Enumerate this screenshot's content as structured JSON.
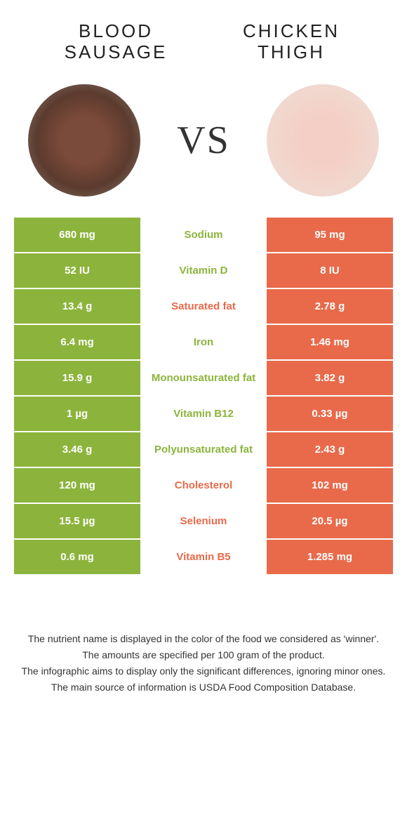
{
  "colors": {
    "left_bg": "#8cb43c",
    "right_bg": "#e86a4a",
    "left_text": "#ffffff",
    "right_text": "#ffffff",
    "mid_green": "#8cb43c",
    "mid_orange": "#e86a4a"
  },
  "header": {
    "left_title": "BLOOD\nSAUSAGE",
    "right_title": "CHICKEN\nTHIGH",
    "vs_label": "VS"
  },
  "rows": [
    {
      "left": "680 mg",
      "mid": "Sodium",
      "right": "95 mg",
      "winner": "left"
    },
    {
      "left": "52 IU",
      "mid": "Vitamin D",
      "right": "8 IU",
      "winner": "left"
    },
    {
      "left": "13.4 g",
      "mid": "Saturated fat",
      "right": "2.78 g",
      "winner": "right"
    },
    {
      "left": "6.4 mg",
      "mid": "Iron",
      "right": "1.46 mg",
      "winner": "left"
    },
    {
      "left": "15.9 g",
      "mid": "Monounsaturated fat",
      "right": "3.82 g",
      "winner": "left"
    },
    {
      "left": "1 µg",
      "mid": "Vitamin B12",
      "right": "0.33 µg",
      "winner": "left"
    },
    {
      "left": "3.46 g",
      "mid": "Polyunsaturated fat",
      "right": "2.43 g",
      "winner": "left"
    },
    {
      "left": "120 mg",
      "mid": "Cholesterol",
      "right": "102 mg",
      "winner": "right"
    },
    {
      "left": "15.5 µg",
      "mid": "Selenium",
      "right": "20.5 µg",
      "winner": "right"
    },
    {
      "left": "0.6 mg",
      "mid": "Vitamin B5",
      "right": "1.285 mg",
      "winner": "right"
    }
  ],
  "footer": {
    "line1": "The nutrient name is displayed in the color of the food we considered as 'winner'.",
    "line2": "The amounts are specified per 100 gram of the product.",
    "line3": "The infographic aims to display only the significant differences, ignoring minor ones.",
    "line4": "The main source of information is USDA Food Composition Database."
  }
}
